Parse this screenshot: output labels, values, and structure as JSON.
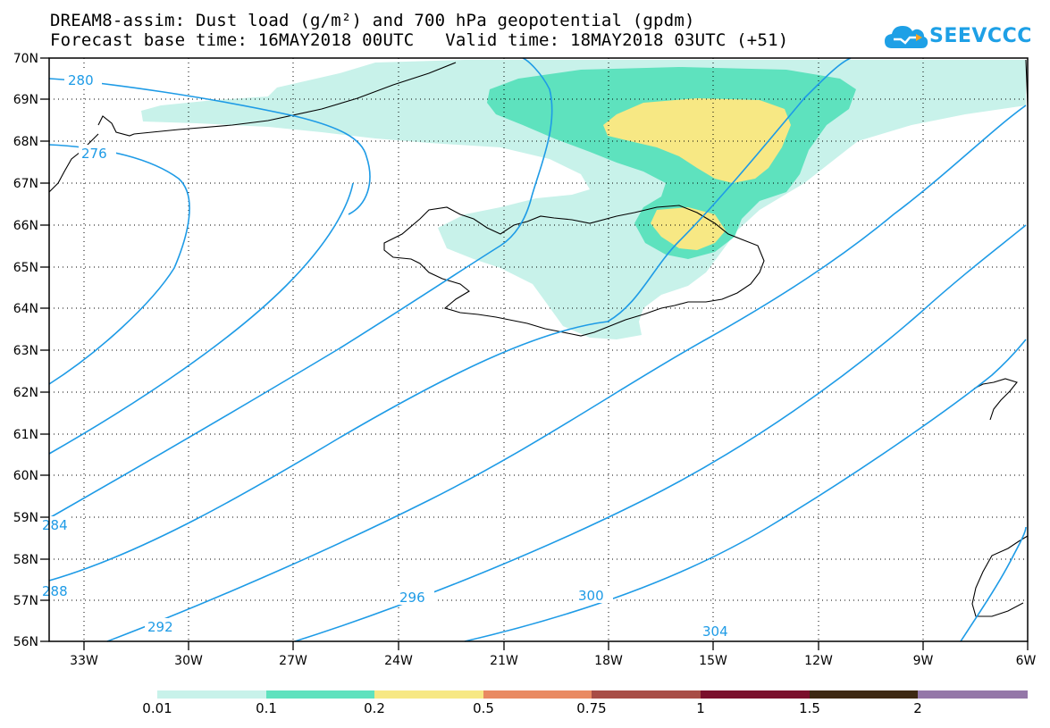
{
  "title": {
    "line1": "DREAM8-assim: Dust load (g/m²) and 700 hPa geopotential (gpdm)",
    "line2": "Forecast base time: 16MAY2018 00UTC   Valid time: 18MAY2018 03UTC (+51)"
  },
  "logo": {
    "text": "SEEVCCC",
    "icon": "cloud-icon",
    "color": "#1ea0e6"
  },
  "map": {
    "lat_labels": [
      "70N",
      "69N",
      "68N",
      "67N",
      "66N",
      "65N",
      "64N",
      "63N",
      "62N",
      "61N",
      "60N",
      "59N",
      "58N",
      "57N",
      "56N"
    ],
    "lon_labels": [
      "33W",
      "30W",
      "27W",
      "24W",
      "21W",
      "18W",
      "15W",
      "12W",
      "9W",
      "6W"
    ],
    "contour_color": "#1e9be6",
    "contour_labels": [
      "280",
      "276",
      "284",
      "288",
      "292",
      "296",
      "300",
      "304"
    ]
  },
  "colorbar": {
    "labels": [
      "0.01",
      "0.1",
      "0.2",
      "0.5",
      "0.75",
      "1",
      "1.5",
      "2"
    ],
    "colors": [
      "#c8f2ea",
      "#5ee2be",
      "#f7e884",
      "#e98a62",
      "#a84d46",
      "#7a0f2c",
      "#3d2812",
      "#9477a8"
    ]
  }
}
